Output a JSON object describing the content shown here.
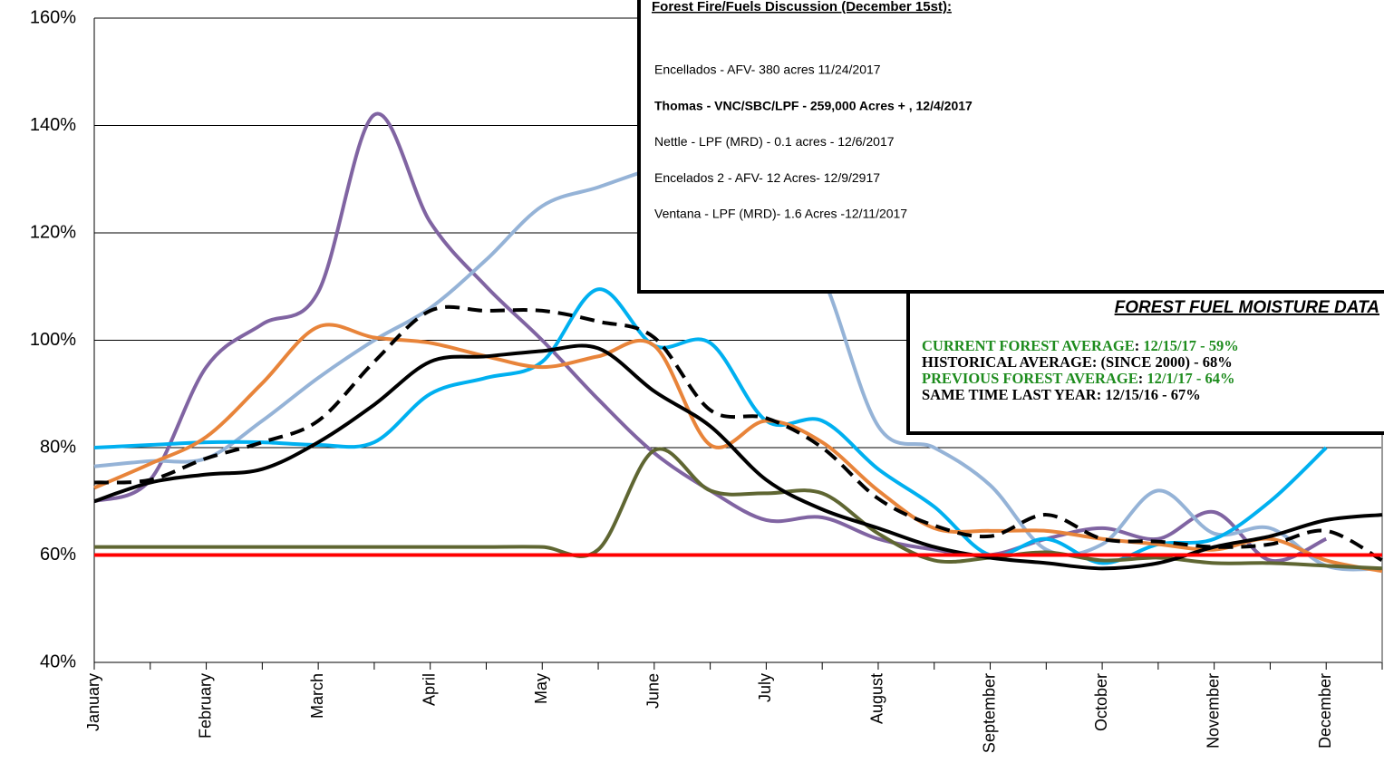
{
  "chart_data": {
    "type": "line",
    "categories": [
      "January",
      null,
      "February",
      null,
      "March",
      null,
      "April",
      null,
      "May",
      null,
      "June",
      null,
      "July",
      null,
      "August",
      null,
      "September",
      null,
      "October",
      null,
      "November",
      null,
      "December",
      null
    ],
    "ylim": [
      40,
      160
    ],
    "yticks": [
      {
        "value": 40,
        "label": "40%"
      },
      {
        "value": 60,
        "label": "60%"
      },
      {
        "value": 80,
        "label": "80%"
      },
      {
        "value": 100,
        "label": "100%"
      },
      {
        "value": 120,
        "label": "120%"
      },
      {
        "value": 140,
        "label": "140%"
      },
      {
        "value": 160,
        "label": "160%"
      }
    ],
    "grid": true,
    "series": [
      {
        "color": "#8064a2",
        "values": [
          70,
          74,
          95,
          103,
          109,
          142,
          122,
          110,
          100,
          89,
          79,
          72,
          66.5,
          67,
          63,
          61,
          60,
          63,
          65,
          63,
          68,
          59,
          63,
          null
        ]
      },
      {
        "color": "#95b3d7",
        "values": [
          76.5,
          77.5,
          78,
          85,
          93,
          100,
          106,
          115,
          125,
          128.5,
          132,
          134,
          128,
          112,
          84,
          80,
          73,
          61,
          62,
          72,
          64,
          65,
          58,
          57.5
        ]
      },
      {
        "color": "#00b0f0",
        "values": [
          80,
          80.5,
          81,
          81,
          80.5,
          81,
          90,
          93,
          96,
          109.5,
          99,
          99.5,
          85,
          85,
          76,
          69,
          60,
          63,
          58.5,
          62,
          63,
          70,
          80,
          null
        ]
      },
      {
        "color": "#e8843a",
        "values": [
          72.5,
          77,
          82,
          92,
          102.5,
          100.5,
          99.5,
          97,
          95,
          97,
          99,
          80.5,
          85,
          81,
          72,
          65,
          64.5,
          64.5,
          63,
          62,
          61,
          63,
          59,
          57
        ]
      },
      {
        "color": "#5f6632",
        "values": [
          61.5,
          61.5,
          61.5,
          61.5,
          61.5,
          61.5,
          61.5,
          61.5,
          61.5,
          61,
          79.5,
          72,
          71.5,
          71.5,
          64,
          59,
          59.5,
          60.5,
          59,
          59.5,
          58.5,
          58.5,
          58,
          57.5
        ]
      },
      {
        "color": "#000000",
        "values": [
          70,
          73.5,
          75,
          76,
          81,
          88,
          96,
          97,
          98,
          98.5,
          90.5,
          84,
          74,
          68.5,
          65,
          61.5,
          59.5,
          58.5,
          57.5,
          58.5,
          61.5,
          63.5,
          66.5,
          67.5
        ]
      },
      {
        "color": "#000000",
        "dashed": true,
        "values": [
          73.5,
          74,
          78,
          81,
          85,
          96,
          105.5,
          105.5,
          105.5,
          103.5,
          100.5,
          87,
          85.5,
          80,
          70.5,
          65.5,
          63.5,
          67.5,
          63,
          62.5,
          61.5,
          62,
          64.5,
          59
        ]
      },
      {
        "color": "#ff0000",
        "smooth": false,
        "values": [
          60,
          60,
          60,
          60,
          60,
          60,
          60,
          60,
          60,
          60,
          60,
          60,
          60,
          60,
          60,
          60,
          60,
          60,
          60,
          60,
          60,
          60,
          60,
          60
        ]
      }
    ]
  },
  "fire_box": {
    "title": "Forest Fire/Fuels Discussion (December 15st):",
    "items": [
      {
        "text": "Encellados - AFV- 380 acres 11/24/2017",
        "bold": false
      },
      {
        "text": "Thomas - VNC/SBC/LPF - 259,000 Acres + , 12/4/2017",
        "bold": true
      },
      {
        "text": "Nettle - LPF (MRD) - 0.1 acres - 12/6/2017",
        "bold": false
      },
      {
        "text": "Encelados 2 - AFV- 12 Acres- 12/9/2917",
        "bold": false
      },
      {
        "text": "Ventana - LPF (MRD)- 1.6 Acres -12/11/2017",
        "bold": false
      }
    ]
  },
  "moisture_box": {
    "title": "FOREST FUEL MOISTURE DATA",
    "lines": [
      {
        "texts": [
          "CURRENT FOREST AVERAGE",
          ": ",
          "12/15/17 - 59%"
        ],
        "colors": [
          "#1e8c1e",
          "#000000",
          "#1e8c1e"
        ]
      },
      {
        "texts": [
          "HISTORICAL AVERAGE: (SINCE 2000) - 68%"
        ],
        "colors": [
          "#000000"
        ]
      },
      {
        "texts": [
          "PREVIOUS FOREST AVERAGE",
          ": ",
          "12/1/17 - 64%"
        ],
        "colors": [
          "#1e8c1e",
          "#000000",
          "#1e8c1e"
        ]
      },
      {
        "texts": [
          "SAME TIME LAST YEAR: 12/15/16 - 67%"
        ],
        "colors": [
          "#000000"
        ]
      }
    ]
  }
}
